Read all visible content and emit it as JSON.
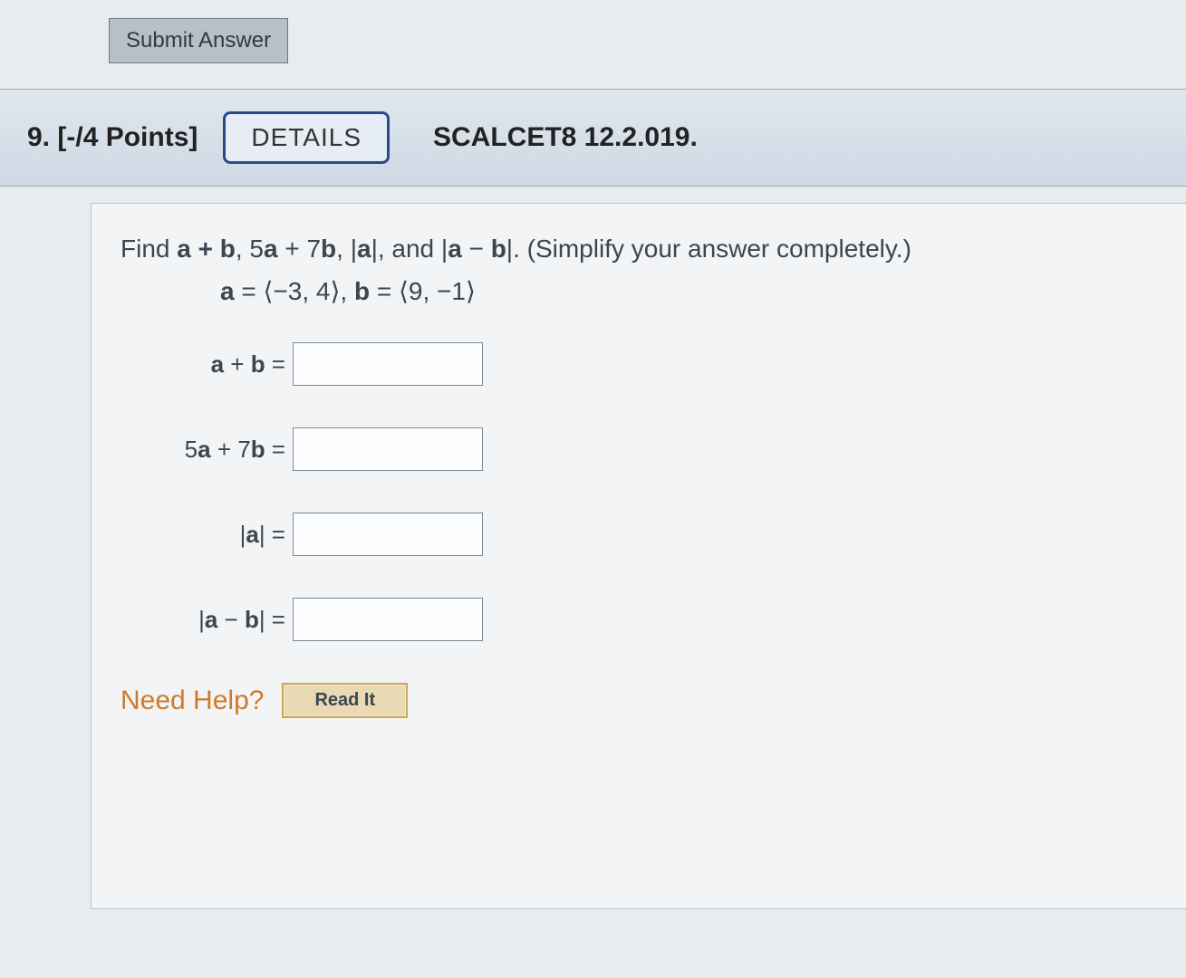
{
  "submit": {
    "label": "Submit Answer"
  },
  "header": {
    "number": "9.",
    "points": "[-/4 Points]",
    "details_label": "DETAILS",
    "source": "SCALCET8 12.2.019."
  },
  "prompt": {
    "lead": "Find  ",
    "p1": "a + b",
    "sep1": ", 5",
    "p2": "a",
    "sep2": " + 7",
    "p3": "b",
    "sep3": ", |",
    "p4": "a",
    "sep4": "|, and |",
    "p5": "a",
    "sep5": " − ",
    "p6": "b",
    "sep6": "|.  (Simplify your answer completely.)"
  },
  "given": {
    "a_lhs": "a",
    "a_eq": " = ⟨−3, 4⟩,    ",
    "b_lhs": "b",
    "b_eq": " = ⟨9, −1⟩"
  },
  "rows": [
    {
      "pre": "",
      "b1": "a",
      "mid": " + ",
      "b2": "b",
      "post": "  ="
    },
    {
      "pre": "5",
      "b1": "a",
      "mid": " + 7",
      "b2": "b",
      "post": "  ="
    },
    {
      "pre": "|",
      "b1": "a",
      "mid": "",
      "b2": "",
      "post": "|  ="
    },
    {
      "pre": "|",
      "b1": "a",
      "mid": " − ",
      "b2": "b",
      "post": "|  ="
    }
  ],
  "help": {
    "need": "Need Help?",
    "readit": "Read It"
  },
  "colors": {
    "page_bg": "#e9ecee",
    "header_bg_top": "#dfe6ee",
    "header_bg_bottom": "#cfd9e4",
    "details_border": "#2a4a8a",
    "need_help": "#d07a2a",
    "readit_bg": "#e9d9b5",
    "readit_border": "#c9a85a",
    "input_border": "#7a8894",
    "text": "#3a4650"
  }
}
